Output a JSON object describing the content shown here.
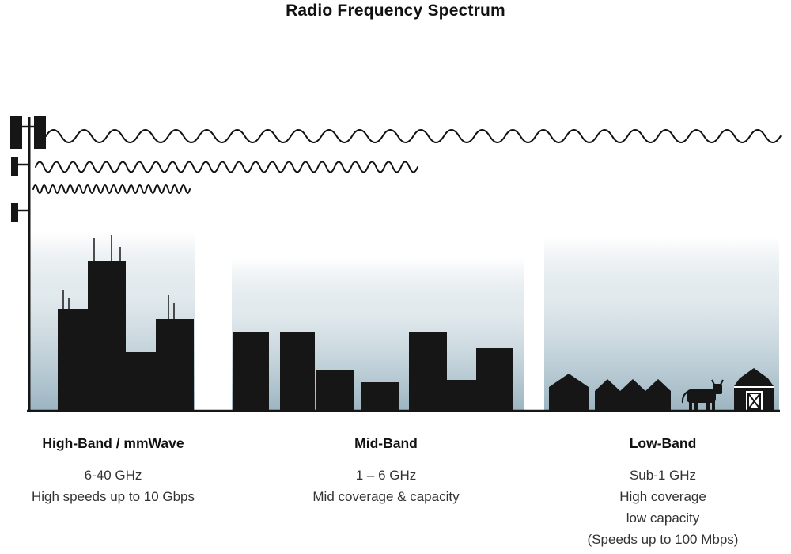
{
  "title": "Radio Frequency Spectrum",
  "bands": [
    {
      "id": "high-band",
      "name": "High-Band / mmWave",
      "frequency": "6-40 GHz",
      "descriptions": [
        "High speeds up to 10 Gbps"
      ]
    },
    {
      "id": "mid-band",
      "name": "Mid-Band",
      "frequency": "1 – 6 GHz",
      "descriptions": [
        "Mid coverage & capacity"
      ]
    },
    {
      "id": "low-band",
      "name": "Low-Band",
      "frequency": "Sub-1 GHz",
      "descriptions": [
        "High coverage",
        "low capacity",
        "(Speeds up to 100 Mbps)"
      ]
    }
  ],
  "scene": {
    "tower_icon": "cell-tower-icon",
    "waves": [
      {
        "icon": "wave-low-band-icon",
        "wavelength": "long",
        "band": "Low-Band"
      },
      {
        "icon": "wave-mid-band-icon",
        "wavelength": "medium",
        "band": "Mid-Band"
      },
      {
        "icon": "wave-high-band-icon",
        "wavelength": "short",
        "band": "High-Band / mmWave"
      }
    ],
    "skylines": [
      "city-skyscrapers",
      "midrise-buildings",
      "rural-houses-cow-barn"
    ]
  },
  "colors": {
    "silhouette": "#161616",
    "sky_gradient_top": "#ffffff",
    "sky_gradient_bottom": "#9bb4c1",
    "text": "#333333"
  }
}
